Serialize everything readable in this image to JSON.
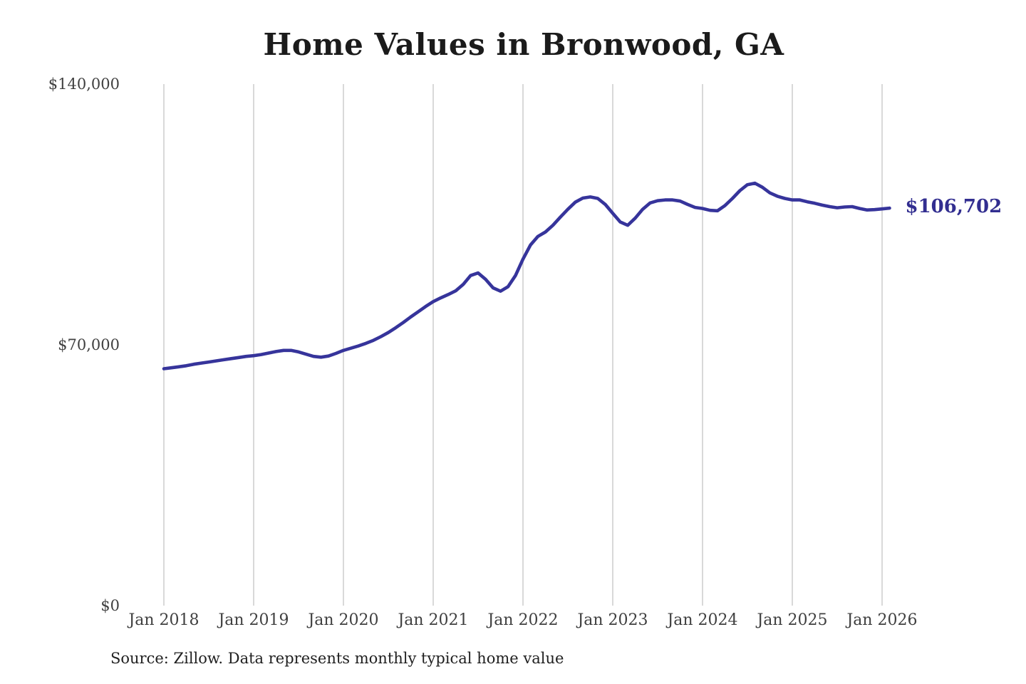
{
  "page": {
    "background": "#ffffff"
  },
  "chart_data": {
    "type": "line",
    "title": "Home Values in Bronwood, GA",
    "legend": "none",
    "grid": "vertical-only",
    "ylim": [
      0,
      140000
    ],
    "y_ticks": [
      {
        "value": 140000,
        "label": "$140,000"
      },
      {
        "value": 70000,
        "label": "$70,000"
      },
      {
        "value": 0,
        "label": "$0"
      }
    ],
    "x_ticks": [
      {
        "month": "2018-01",
        "label": "Jan 2018"
      },
      {
        "month": "2019-01",
        "label": "Jan 2019"
      },
      {
        "month": "2020-01",
        "label": "Jan 2020"
      },
      {
        "month": "2021-01",
        "label": "Jan 2021"
      },
      {
        "month": "2022-01",
        "label": "Jan 2022"
      },
      {
        "month": "2023-01",
        "label": "Jan 2023"
      },
      {
        "month": "2024-01",
        "label": "Jan 2024"
      },
      {
        "month": "2025-01",
        "label": "Jan 2025"
      },
      {
        "month": "2026-01",
        "label": "Jan 2026"
      }
    ],
    "series": [
      {
        "name": "Monthly typical home value",
        "x": [
          "2018-01",
          "2018-02",
          "2018-03",
          "2018-04",
          "2018-05",
          "2018-06",
          "2018-07",
          "2018-08",
          "2018-09",
          "2018-10",
          "2018-11",
          "2018-12",
          "2019-01",
          "2019-02",
          "2019-03",
          "2019-04",
          "2019-05",
          "2019-06",
          "2019-07",
          "2019-08",
          "2019-09",
          "2019-10",
          "2019-11",
          "2019-12",
          "2020-01",
          "2020-02",
          "2020-03",
          "2020-04",
          "2020-05",
          "2020-06",
          "2020-07",
          "2020-08",
          "2020-09",
          "2020-10",
          "2020-11",
          "2020-12",
          "2021-01",
          "2021-02",
          "2021-03",
          "2021-04",
          "2021-05",
          "2021-06",
          "2021-07",
          "2021-08",
          "2021-09",
          "2021-10",
          "2021-11",
          "2021-12",
          "2022-01",
          "2022-02",
          "2022-03",
          "2022-04",
          "2022-05",
          "2022-06",
          "2022-07",
          "2022-08",
          "2022-09",
          "2022-10",
          "2022-11",
          "2022-12",
          "2023-01",
          "2023-02",
          "2023-03",
          "2023-04",
          "2023-05",
          "2023-06",
          "2023-07",
          "2023-08",
          "2023-09",
          "2023-10",
          "2023-11",
          "2023-12",
          "2024-01",
          "2024-02",
          "2024-03",
          "2024-04",
          "2024-05",
          "2024-06",
          "2024-07",
          "2024-08",
          "2024-09",
          "2024-10",
          "2024-11",
          "2024-12",
          "2025-01",
          "2025-02",
          "2025-03",
          "2025-04",
          "2025-05",
          "2025-06",
          "2025-07",
          "2025-08",
          "2025-09",
          "2025-10",
          "2025-11",
          "2025-12",
          "2026-01",
          "2026-02"
        ],
        "values": [
          63600,
          63850,
          64100,
          64400,
          64800,
          65100,
          65400,
          65700,
          66000,
          66300,
          66600,
          66900,
          67100,
          67400,
          67800,
          68200,
          68500,
          68500,
          68100,
          67500,
          66900,
          66700,
          67000,
          67700,
          68500,
          69100,
          69700,
          70400,
          71200,
          72200,
          73300,
          74600,
          76000,
          77500,
          78900,
          80300,
          81600,
          82600,
          83500,
          84500,
          86200,
          88600,
          89300,
          87600,
          85300,
          84400,
          85600,
          88600,
          93000,
          96800,
          99100,
          100300,
          102100,
          104300,
          106400,
          108300,
          109400,
          109700,
          109300,
          107700,
          105300,
          103000,
          102100,
          104000,
          106400,
          108100,
          108700,
          108900,
          108900,
          108600,
          107700,
          106900,
          106600,
          106100,
          106000,
          107400,
          109300,
          111400,
          113000,
          113400,
          112300,
          110800,
          109900,
          109300,
          108900,
          108900,
          108400,
          108000,
          107500,
          107100,
          106800,
          107000,
          107100,
          106600,
          106200,
          106300,
          106500,
          106702
        ]
      }
    ],
    "latest_value_label": "$106,702",
    "source_note": "Source: Zillow. Data represents monthly typical home value",
    "colors": {
      "line": "#36349B",
      "latest_label": "#322E90",
      "grid": "#C9C9C9",
      "title": "#1B1B1B",
      "tick_label": "#404040",
      "source": "#1F1F1F"
    }
  }
}
